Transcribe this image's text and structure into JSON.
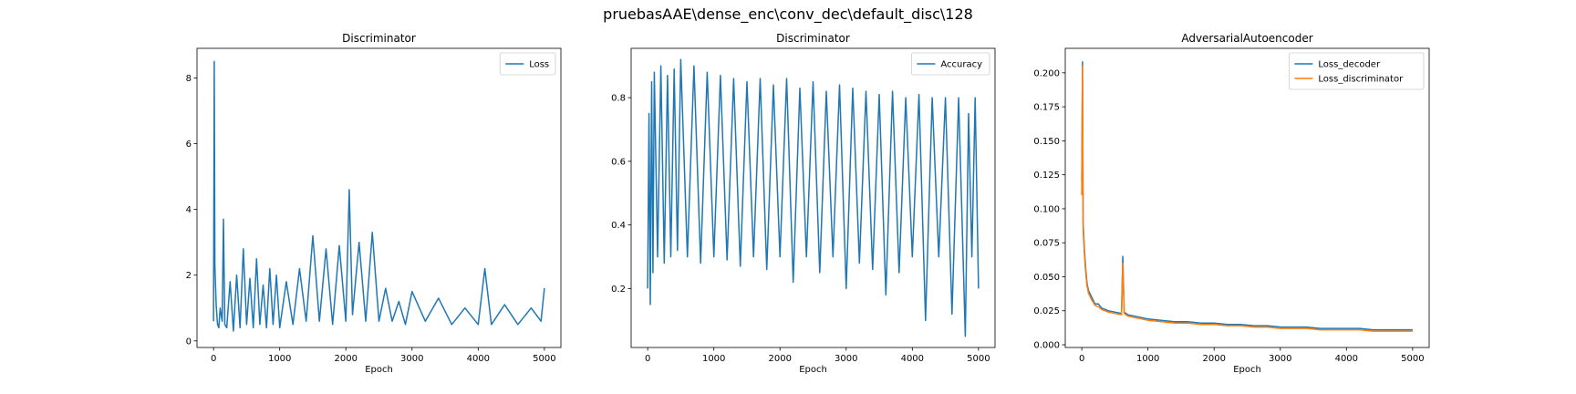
{
  "figure": {
    "suptitle": "pruebasAAE\\dense_enc\\conv_dec\\default_disc\\128"
  },
  "colors": {
    "series1": "#1f77b4",
    "series2": "#ff7f0e"
  },
  "chart_data": [
    {
      "type": "line",
      "title": "Discriminator",
      "xlabel": "Epoch",
      "ylabel": "",
      "xlim": [
        -250,
        5250
      ],
      "ylim": [
        -0.2,
        8.9
      ],
      "xticks": [
        0,
        1000,
        2000,
        3000,
        4000,
        5000
      ],
      "yticks": [
        0,
        2,
        4,
        6,
        8
      ],
      "legend": "top-right",
      "grid": false,
      "series": [
        {
          "name": "Loss",
          "color": "#1f77b4",
          "x": [
            0,
            10,
            20,
            40,
            60,
            80,
            100,
            130,
            150,
            170,
            200,
            250,
            300,
            350,
            400,
            450,
            500,
            550,
            600,
            650,
            700,
            750,
            800,
            850,
            900,
            950,
            1000,
            1100,
            1200,
            1300,
            1400,
            1500,
            1600,
            1700,
            1800,
            1900,
            2000,
            2050,
            2100,
            2200,
            2300,
            2400,
            2500,
            2600,
            2700,
            2800,
            2900,
            3000,
            3200,
            3400,
            3600,
            3800,
            4000,
            4100,
            4200,
            4400,
            4600,
            4800,
            4950,
            5000
          ],
          "values": [
            0.6,
            8.5,
            2.3,
            1.1,
            0.5,
            0.4,
            1.0,
            0.6,
            3.7,
            0.5,
            0.4,
            1.8,
            0.3,
            2.0,
            0.4,
            2.8,
            0.5,
            1.9,
            0.4,
            2.5,
            0.5,
            1.7,
            0.4,
            2.2,
            0.5,
            2.0,
            0.4,
            1.8,
            0.5,
            2.2,
            0.6,
            3.2,
            0.6,
            2.8,
            0.5,
            2.9,
            0.6,
            4.6,
            0.8,
            3.0,
            0.6,
            3.3,
            0.6,
            1.6,
            0.6,
            1.2,
            0.5,
            1.5,
            0.6,
            1.3,
            0.5,
            1.0,
            0.5,
            2.2,
            0.5,
            1.1,
            0.5,
            1.0,
            0.6,
            1.6
          ]
        }
      ]
    },
    {
      "type": "line",
      "title": "Discriminator",
      "xlabel": "Epoch",
      "ylabel": "",
      "xlim": [
        -250,
        5250
      ],
      "ylim": [
        0.015,
        0.955
      ],
      "xticks": [
        0,
        1000,
        2000,
        3000,
        4000,
        5000
      ],
      "yticks": [
        0.2,
        0.4,
        0.6,
        0.8
      ],
      "legend": "top-right",
      "grid": false,
      "series": [
        {
          "name": "Accuracy",
          "color": "#1f77b4",
          "x": [
            0,
            20,
            40,
            60,
            80,
            100,
            150,
            200,
            250,
            300,
            350,
            400,
            450,
            500,
            600,
            700,
            800,
            900,
            1000,
            1100,
            1200,
            1300,
            1400,
            1500,
            1600,
            1700,
            1800,
            1900,
            2000,
            2100,
            2200,
            2300,
            2400,
            2500,
            2600,
            2700,
            2800,
            2900,
            3000,
            3100,
            3200,
            3300,
            3400,
            3500,
            3600,
            3700,
            3800,
            3900,
            4000,
            4100,
            4200,
            4300,
            4400,
            4500,
            4600,
            4700,
            4800,
            4850,
            4900,
            4950,
            5000
          ],
          "values": [
            0.2,
            0.75,
            0.15,
            0.85,
            0.25,
            0.88,
            0.3,
            0.9,
            0.28,
            0.87,
            0.3,
            0.89,
            0.32,
            0.92,
            0.3,
            0.9,
            0.28,
            0.88,
            0.3,
            0.87,
            0.29,
            0.86,
            0.27,
            0.85,
            0.3,
            0.86,
            0.26,
            0.84,
            0.3,
            0.86,
            0.22,
            0.83,
            0.3,
            0.85,
            0.25,
            0.82,
            0.3,
            0.84,
            0.2,
            0.83,
            0.28,
            0.82,
            0.26,
            0.81,
            0.18,
            0.82,
            0.25,
            0.8,
            0.3,
            0.81,
            0.1,
            0.8,
            0.3,
            0.8,
            0.12,
            0.8,
            0.05,
            0.75,
            0.3,
            0.8,
            0.2
          ]
        }
      ]
    },
    {
      "type": "line",
      "title": "AdversarialAutoencoder",
      "xlabel": "Epoch",
      "ylabel": "",
      "xlim": [
        -250,
        5250
      ],
      "ylim": [
        -0.002,
        0.218
      ],
      "xticks": [
        0,
        1000,
        2000,
        3000,
        4000,
        5000
      ],
      "yticks": [
        0.0,
        0.025,
        0.05,
        0.075,
        0.1,
        0.125,
        0.15,
        0.175,
        0.2
      ],
      "ytick_labels": [
        "0.000",
        "0.025",
        "0.050",
        "0.075",
        "0.100",
        "0.125",
        "0.150",
        "0.175",
        "0.200"
      ],
      "legend": "top-right",
      "grid": false,
      "series": [
        {
          "name": "Loss_decoder",
          "color": "#1f77b4",
          "x": [
            0,
            10,
            20,
            40,
            60,
            80,
            100,
            150,
            200,
            250,
            300,
            400,
            500,
            600,
            620,
            640,
            700,
            800,
            900,
            1000,
            1200,
            1400,
            1600,
            1800,
            2000,
            2200,
            2400,
            2600,
            2800,
            3000,
            3200,
            3400,
            3600,
            3800,
            4000,
            4200,
            4400,
            4600,
            4800,
            5000
          ],
          "values": [
            0.12,
            0.208,
            0.09,
            0.07,
            0.055,
            0.045,
            0.04,
            0.035,
            0.03,
            0.03,
            0.027,
            0.025,
            0.024,
            0.023,
            0.065,
            0.024,
            0.022,
            0.021,
            0.02,
            0.019,
            0.018,
            0.017,
            0.017,
            0.016,
            0.016,
            0.015,
            0.015,
            0.014,
            0.014,
            0.013,
            0.013,
            0.013,
            0.012,
            0.012,
            0.012,
            0.012,
            0.011,
            0.011,
            0.011,
            0.011
          ]
        },
        {
          "name": "Loss_discriminator",
          "color": "#ff7f0e",
          "x": [
            0,
            10,
            20,
            40,
            60,
            80,
            100,
            150,
            200,
            250,
            300,
            400,
            500,
            600,
            620,
            640,
            700,
            800,
            900,
            1000,
            1200,
            1400,
            1600,
            1800,
            2000,
            2200,
            2400,
            2600,
            2800,
            3000,
            3200,
            3400,
            3600,
            3800,
            4000,
            4200,
            4400,
            4600,
            4800,
            5000
          ],
          "values": [
            0.11,
            0.205,
            0.085,
            0.066,
            0.052,
            0.043,
            0.038,
            0.033,
            0.029,
            0.028,
            0.026,
            0.024,
            0.023,
            0.022,
            0.06,
            0.023,
            0.021,
            0.02,
            0.019,
            0.018,
            0.017,
            0.016,
            0.016,
            0.015,
            0.015,
            0.014,
            0.014,
            0.013,
            0.013,
            0.012,
            0.012,
            0.012,
            0.011,
            0.011,
            0.011,
            0.011,
            0.01,
            0.01,
            0.01,
            0.01
          ]
        }
      ]
    }
  ]
}
